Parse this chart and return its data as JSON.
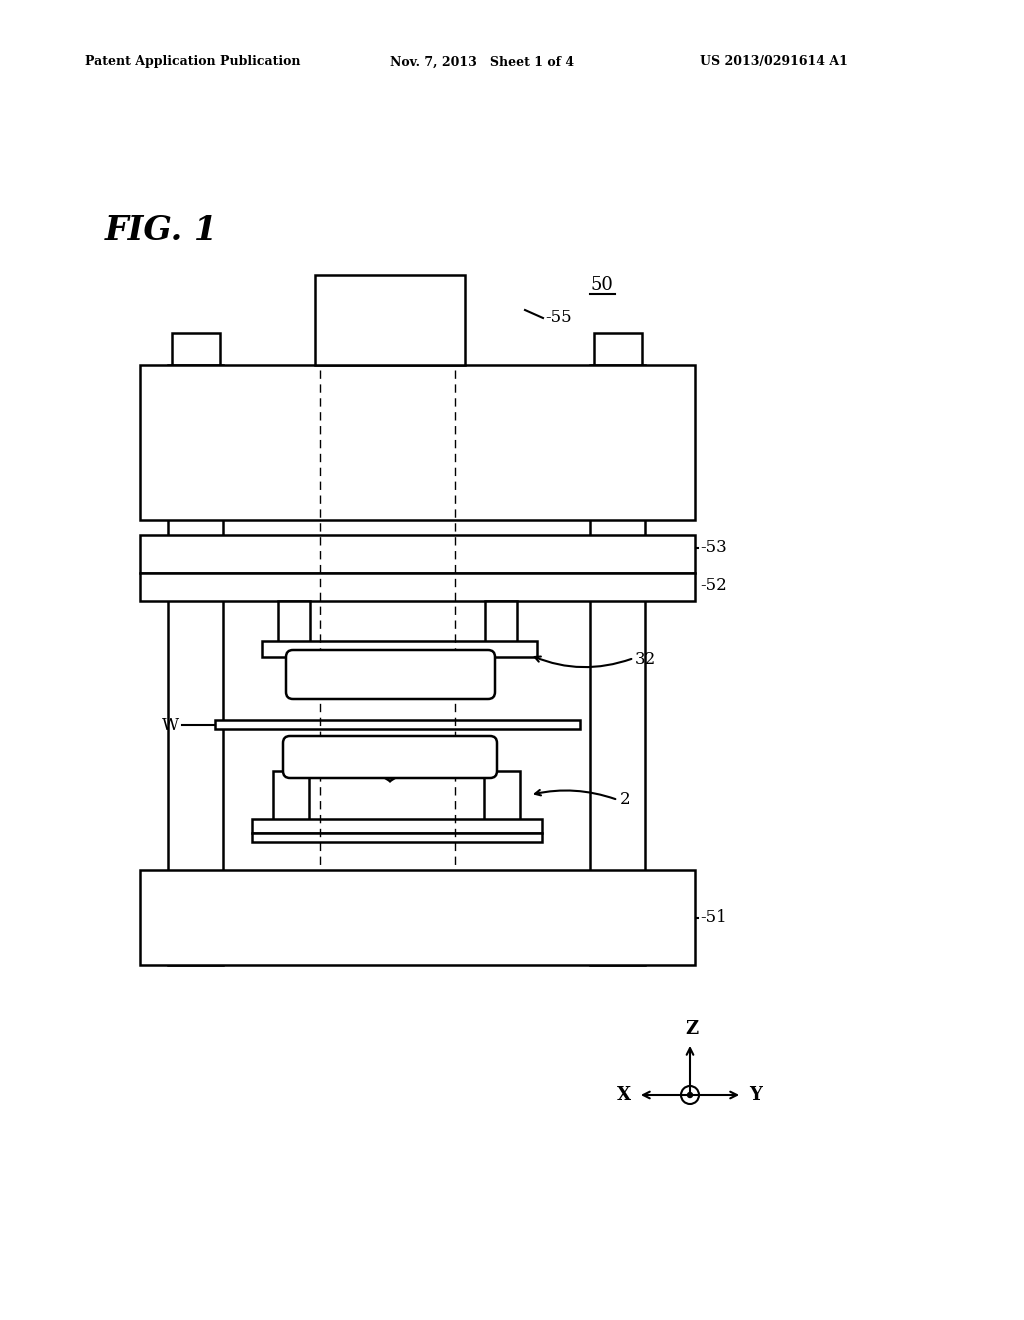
{
  "background_color": "#ffffff",
  "header_left": "Patent Application Publication",
  "header_mid": "Nov. 7, 2013   Sheet 1 of 4",
  "header_right": "US 2013/0291614 A1",
  "fig_label": "FIG. 1",
  "label_50": "50",
  "label_55": "-55",
  "label_53": "-53",
  "label_52": "-52",
  "label_32": "32",
  "label_W": "W",
  "label_2": "2",
  "label_51": "-51",
  "line_color": "#000000",
  "lw": 1.8
}
